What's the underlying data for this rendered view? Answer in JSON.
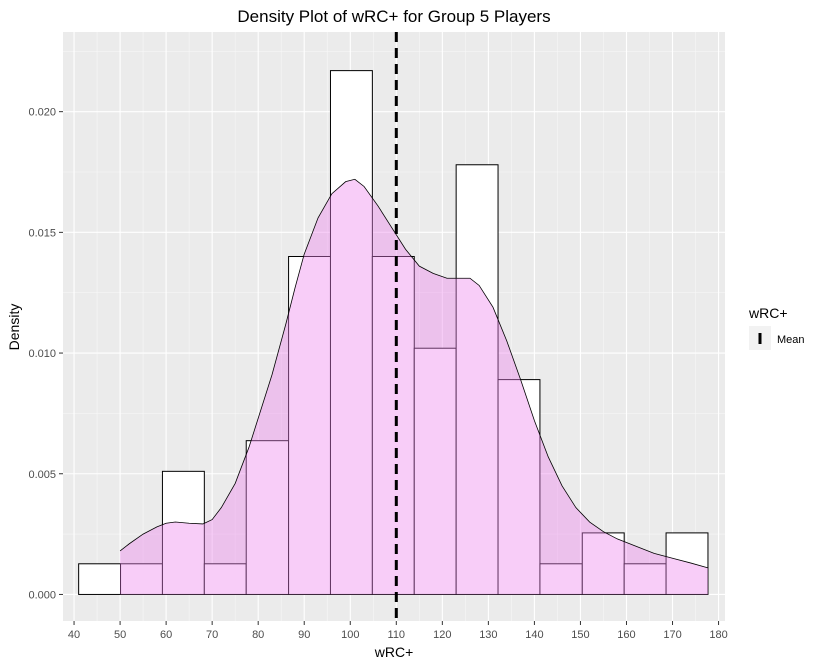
{
  "chart_data": {
    "type": "histogram-density",
    "title": "Density Plot of wRC+ for Group 5 Players",
    "xlabel": "wRC+",
    "ylabel": "Density",
    "xlim": [
      41,
      178
    ],
    "ylim": [
      0,
      0.0222
    ],
    "x_ticks": [
      40,
      50,
      60,
      70,
      80,
      90,
      100,
      110,
      120,
      130,
      140,
      150,
      160,
      170,
      180
    ],
    "y_ticks": [
      0.0,
      0.005,
      0.01,
      0.015,
      0.02
    ],
    "y_tick_labels": [
      "0.000",
      "0.005",
      "0.010",
      "0.015",
      "0.020"
    ],
    "grid": true,
    "histogram": {
      "bins": [
        {
          "x0": 41,
          "x1": 50.1,
          "density": 0.00127
        },
        {
          "x0": 50.1,
          "x1": 59.2,
          "density": 0.00127
        },
        {
          "x0": 59.2,
          "x1": 68.3,
          "density": 0.0051
        },
        {
          "x0": 68.3,
          "x1": 77.4,
          "density": 0.00127
        },
        {
          "x0": 77.4,
          "x1": 86.6,
          "density": 0.00637
        },
        {
          "x0": 86.6,
          "x1": 95.7,
          "density": 0.014
        },
        {
          "x0": 95.7,
          "x1": 104.8,
          "density": 0.0217
        },
        {
          "x0": 104.8,
          "x1": 113.9,
          "density": 0.014
        },
        {
          "x0": 113.9,
          "x1": 123.0,
          "density": 0.0102
        },
        {
          "x0": 123.0,
          "x1": 132.1,
          "density": 0.0178
        },
        {
          "x0": 132.1,
          "x1": 141.2,
          "density": 0.0089
        },
        {
          "x0": 141.2,
          "x1": 150.4,
          "density": 0.00127
        },
        {
          "x0": 150.4,
          "x1": 159.5,
          "density": 0.00255
        },
        {
          "x0": 159.5,
          "x1": 168.6,
          "density": 0.00127
        },
        {
          "x0": 168.6,
          "x1": 177.7,
          "density": 0.00255
        }
      ]
    },
    "density": {
      "fill_color": "#ee82ee",
      "points": [
        [
          50,
          0.0018
        ],
        [
          52,
          0.0021
        ],
        [
          55,
          0.0025
        ],
        [
          58,
          0.0028
        ],
        [
          60,
          0.00295
        ],
        [
          62,
          0.003
        ],
        [
          65,
          0.00295
        ],
        [
          68,
          0.00292
        ],
        [
          70,
          0.0031
        ],
        [
          72,
          0.0036
        ],
        [
          75,
          0.0046
        ],
        [
          78,
          0.0061
        ],
        [
          80,
          0.0073
        ],
        [
          83,
          0.0091
        ],
        [
          86,
          0.0112
        ],
        [
          88,
          0.0127
        ],
        [
          90,
          0.0141
        ],
        [
          93,
          0.0156
        ],
        [
          96,
          0.0166
        ],
        [
          99,
          0.0171
        ],
        [
          101,
          0.0172
        ],
        [
          103,
          0.0169
        ],
        [
          106,
          0.0161
        ],
        [
          109,
          0.0152
        ],
        [
          112,
          0.0143
        ],
        [
          115,
          0.0136
        ],
        [
          118,
          0.0133
        ],
        [
          121,
          0.0131
        ],
        [
          124,
          0.0131
        ],
        [
          126,
          0.0131
        ],
        [
          128,
          0.0128
        ],
        [
          131,
          0.0119
        ],
        [
          134,
          0.0105
        ],
        [
          137,
          0.0089
        ],
        [
          140,
          0.0072
        ],
        [
          143,
          0.0057
        ],
        [
          146,
          0.0045
        ],
        [
          149,
          0.0036
        ],
        [
          152,
          0.003
        ],
        [
          155,
          0.0026
        ],
        [
          158,
          0.0023
        ],
        [
          162,
          0.002
        ],
        [
          166,
          0.0017
        ],
        [
          170,
          0.0015
        ],
        [
          174,
          0.0013
        ],
        [
          177.7,
          0.0011
        ]
      ]
    },
    "mean_line": {
      "x": 110,
      "label": "Mean"
    },
    "legend": {
      "title": "wRC+",
      "placement": "right",
      "entries": [
        "Mean"
      ]
    }
  }
}
